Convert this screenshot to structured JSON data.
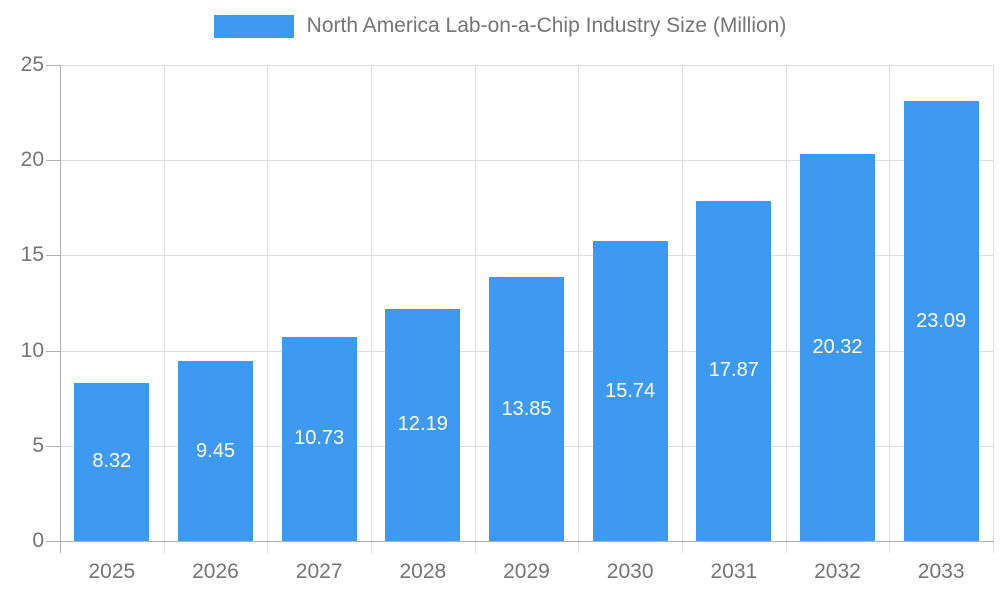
{
  "colors": {
    "bar": "#3D9AF0",
    "grid": "#DDDDDD",
    "axis": "#B0B0B0",
    "label_text": "#757575",
    "value_text": "#FFFFFF",
    "background": "#FFFFFF"
  },
  "legend": {
    "label": "North America Lab-on-a-Chip Industry Size (Million)"
  },
  "chart_data": {
    "type": "bar",
    "title": "North America Lab-on-a-Chip Industry Size (Million)",
    "series_name": "North America Lab-on-a-Chip Industry Size (Million)",
    "categories": [
      "2025",
      "2026",
      "2027",
      "2028",
      "2029",
      "2030",
      "2031",
      "2032",
      "2033"
    ],
    "values": [
      8.32,
      9.45,
      10.73,
      12.19,
      13.85,
      15.74,
      17.87,
      20.32,
      23.09
    ],
    "value_labels": [
      "8.32",
      "9.45",
      "10.73",
      "12.19",
      "13.85",
      "15.74",
      "17.87",
      "20.32",
      "23.09"
    ],
    "xlabel": "",
    "ylabel": "",
    "ylim": [
      0,
      25
    ],
    "yticks": [
      0,
      5,
      10,
      15,
      20,
      25
    ],
    "grid": "horizontal-and-vertical",
    "legend_position": "top",
    "value_label_position": "center-inside"
  }
}
